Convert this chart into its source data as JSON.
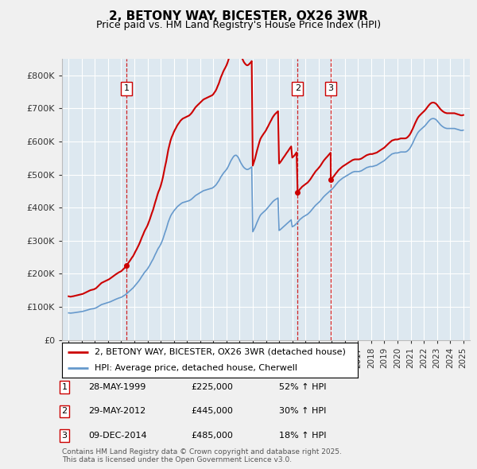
{
  "title": "2, BETONY WAY, BICESTER, OX26 3WR",
  "subtitle": "Price paid vs. HM Land Registry's House Price Index (HPI)",
  "legend_entries": [
    "2, BETONY WAY, BICESTER, OX26 3WR (detached house)",
    "HPI: Average price, detached house, Cherwell"
  ],
  "sales": [
    {
      "label": "1",
      "date_num": 1999.41,
      "price": 225000,
      "pct": "52% ↑ HPI"
    },
    {
      "label": "2",
      "date_num": 2012.41,
      "price": 445000,
      "pct": "30% ↑ HPI"
    },
    {
      "label": "3",
      "date_num": 2014.93,
      "price": 485000,
      "pct": "18% ↑ HPI"
    }
  ],
  "sale_annotations": [
    {
      "label": "1",
      "date": "28-MAY-1999",
      "price_str": "£225,000"
    },
    {
      "label": "2",
      "date": "29-MAY-2012",
      "price_str": "£445,000"
    },
    {
      "label": "3",
      "date": "09-DEC-2014",
      "price_str": "£485,000"
    }
  ],
  "red_line_color": "#cc0000",
  "blue_line_color": "#6699cc",
  "vline_color": "#cc0000",
  "plot_bg_color": "#dde8f0",
  "fig_bg_color": "#f0f0f0",
  "ylim": [
    0,
    850000
  ],
  "xlim": [
    1994.5,
    2025.5
  ],
  "yticks": [
    0,
    100000,
    200000,
    300000,
    400000,
    500000,
    600000,
    700000,
    800000
  ],
  "ytick_labels": [
    "£0",
    "£100K",
    "£200K",
    "£300K",
    "£400K",
    "£500K",
    "£600K",
    "£700K",
    "£800K"
  ],
  "footer": "Contains HM Land Registry data © Crown copyright and database right 2025.\nThis data is licensed under the Open Government Licence v3.0.",
  "hpi_years": [
    1995,
    1995.08,
    1995.17,
    1995.25,
    1995.33,
    1995.42,
    1995.5,
    1995.58,
    1995.67,
    1995.75,
    1995.83,
    1995.92,
    1996,
    1996.08,
    1996.17,
    1996.25,
    1996.33,
    1996.42,
    1996.5,
    1996.58,
    1996.67,
    1996.75,
    1996.83,
    1996.92,
    1997,
    1997.08,
    1997.17,
    1997.25,
    1997.33,
    1997.42,
    1997.5,
    1997.58,
    1997.67,
    1997.75,
    1997.83,
    1997.92,
    1998,
    1998.08,
    1998.17,
    1998.25,
    1998.33,
    1998.42,
    1998.5,
    1998.58,
    1998.67,
    1998.75,
    1998.83,
    1998.92,
    1999,
    1999.08,
    1999.17,
    1999.25,
    1999.33,
    1999.42,
    1999.5,
    1999.58,
    1999.67,
    1999.75,
    1999.83,
    1999.92,
    2000,
    2000.08,
    2000.17,
    2000.25,
    2000.33,
    2000.42,
    2000.5,
    2000.58,
    2000.67,
    2000.75,
    2000.83,
    2000.92,
    2001,
    2001.08,
    2001.17,
    2001.25,
    2001.33,
    2001.42,
    2001.5,
    2001.58,
    2001.67,
    2001.75,
    2001.83,
    2001.92,
    2002,
    2002.08,
    2002.17,
    2002.25,
    2002.33,
    2002.42,
    2002.5,
    2002.58,
    2002.67,
    2002.75,
    2002.83,
    2002.92,
    2003,
    2003.08,
    2003.17,
    2003.25,
    2003.33,
    2003.42,
    2003.5,
    2003.58,
    2003.67,
    2003.75,
    2003.83,
    2003.92,
    2004,
    2004.08,
    2004.17,
    2004.25,
    2004.33,
    2004.42,
    2004.5,
    2004.58,
    2004.67,
    2004.75,
    2004.83,
    2004.92,
    2005,
    2005.08,
    2005.17,
    2005.25,
    2005.33,
    2005.42,
    2005.5,
    2005.58,
    2005.67,
    2005.75,
    2005.83,
    2005.92,
    2006,
    2006.08,
    2006.17,
    2006.25,
    2006.33,
    2006.42,
    2006.5,
    2006.58,
    2006.67,
    2006.75,
    2006.83,
    2006.92,
    2007,
    2007.08,
    2007.17,
    2007.25,
    2007.33,
    2007.42,
    2007.5,
    2007.58,
    2007.67,
    2007.75,
    2007.83,
    2007.92,
    2008,
    2008.08,
    2008.17,
    2008.25,
    2008.33,
    2008.42,
    2008.5,
    2008.58,
    2008.67,
    2008.75,
    2008.83,
    2008.92,
    2009,
    2009.08,
    2009.17,
    2009.25,
    2009.33,
    2009.42,
    2009.5,
    2009.58,
    2009.67,
    2009.75,
    2009.83,
    2009.92,
    2010,
    2010.08,
    2010.17,
    2010.25,
    2010.33,
    2010.42,
    2010.5,
    2010.58,
    2010.67,
    2010.75,
    2010.83,
    2010.92,
    2011,
    2011.08,
    2011.17,
    2011.25,
    2011.33,
    2011.42,
    2011.5,
    2011.58,
    2011.67,
    2011.75,
    2011.83,
    2011.92,
    2012,
    2012.08,
    2012.17,
    2012.25,
    2012.33,
    2012.42,
    2012.5,
    2012.58,
    2012.67,
    2012.75,
    2012.83,
    2012.92,
    2013,
    2013.08,
    2013.17,
    2013.25,
    2013.33,
    2013.42,
    2013.5,
    2013.58,
    2013.67,
    2013.75,
    2013.83,
    2013.92,
    2014,
    2014.08,
    2014.17,
    2014.25,
    2014.33,
    2014.42,
    2014.5,
    2014.58,
    2014.67,
    2014.75,
    2014.83,
    2014.92,
    2015,
    2015.08,
    2015.17,
    2015.25,
    2015.33,
    2015.42,
    2015.5,
    2015.58,
    2015.67,
    2015.75,
    2015.83,
    2015.92,
    2016,
    2016.08,
    2016.17,
    2016.25,
    2016.33,
    2016.42,
    2016.5,
    2016.58,
    2016.67,
    2016.75,
    2016.83,
    2016.92,
    2017,
    2017.08,
    2017.17,
    2017.25,
    2017.33,
    2017.42,
    2017.5,
    2017.58,
    2017.67,
    2017.75,
    2017.83,
    2017.92,
    2018,
    2018.08,
    2018.17,
    2018.25,
    2018.33,
    2018.42,
    2018.5,
    2018.58,
    2018.67,
    2018.75,
    2018.83,
    2018.92,
    2019,
    2019.08,
    2019.17,
    2019.25,
    2019.33,
    2019.42,
    2019.5,
    2019.58,
    2019.67,
    2019.75,
    2019.83,
    2019.92,
    2020,
    2020.08,
    2020.17,
    2020.25,
    2020.33,
    2020.42,
    2020.5,
    2020.58,
    2020.67,
    2020.75,
    2020.83,
    2020.92,
    2021,
    2021.08,
    2021.17,
    2021.25,
    2021.33,
    2021.42,
    2021.5,
    2021.58,
    2021.67,
    2021.75,
    2021.83,
    2021.92,
    2022,
    2022.08,
    2022.17,
    2022.25,
    2022.33,
    2022.42,
    2022.5,
    2022.58,
    2022.67,
    2022.75,
    2022.83,
    2022.92,
    2023,
    2023.08,
    2023.17,
    2023.25,
    2023.33,
    2023.42,
    2023.5,
    2023.58,
    2023.67,
    2023.75,
    2023.83,
    2023.92,
    2024,
    2024.08,
    2024.17,
    2024.25,
    2024.33,
    2024.42,
    2024.5,
    2024.58,
    2024.67,
    2024.75,
    2024.83,
    2024.92,
    2025.0
  ],
  "hpi_values": [
    82000,
    81500,
    81200,
    81800,
    82000,
    82500,
    83000,
    83500,
    84000,
    84500,
    85000,
    85500,
    86000,
    86500,
    87500,
    88500,
    89500,
    90500,
    91500,
    92500,
    93500,
    94000,
    94500,
    95000,
    96000,
    97000,
    99000,
    101000,
    103000,
    105000,
    107000,
    108000,
    109000,
    110000,
    111000,
    112000,
    113000,
    114000,
    115500,
    117000,
    118500,
    120000,
    121500,
    123000,
    124500,
    126000,
    127000,
    128000,
    129000,
    131000,
    133000,
    135000,
    137000,
    140000,
    143000,
    146000,
    149000,
    152000,
    155000,
    158000,
    162000,
    166000,
    170000,
    174000,
    178000,
    183000,
    188000,
    193000,
    198000,
    203000,
    207000,
    211000,
    215000,
    220000,
    226000,
    232000,
    238000,
    244000,
    251000,
    258000,
    265000,
    272000,
    278000,
    283000,
    289000,
    296000,
    305000,
    315000,
    325000,
    335000,
    346000,
    357000,
    366000,
    374000,
    380000,
    385000,
    390000,
    394000,
    398000,
    402000,
    405000,
    408000,
    411000,
    413000,
    415000,
    416000,
    417000,
    418000,
    419000,
    420000,
    421000,
    423000,
    425000,
    428000,
    431000,
    434000,
    437000,
    439000,
    441000,
    443000,
    445000,
    447000,
    449000,
    451000,
    452000,
    453000,
    454000,
    455000,
    456000,
    457000,
    458000,
    459000,
    461000,
    464000,
    467000,
    471000,
    476000,
    481000,
    487000,
    493000,
    498000,
    503000,
    507000,
    511000,
    515000,
    520000,
    527000,
    534000,
    541000,
    547000,
    552000,
    556000,
    558000,
    558000,
    555000,
    550000,
    543000,
    536000,
    530000,
    525000,
    521000,
    518000,
    516000,
    515000,
    516000,
    518000,
    520000,
    523000,
    327000,
    333000,
    340000,
    348000,
    356000,
    364000,
    371000,
    377000,
    381000,
    384000,
    387000,
    390000,
    393000,
    397000,
    401000,
    405000,
    409000,
    413000,
    417000,
    420000,
    423000,
    425000,
    427000,
    429000,
    331000,
    333000,
    336000,
    339000,
    342000,
    345000,
    348000,
    351000,
    354000,
    357000,
    360000,
    363000,
    342000,
    344000,
    346000,
    349000,
    352000,
    356000,
    360000,
    364000,
    367000,
    370000,
    372000,
    374000,
    376000,
    378000,
    380000,
    383000,
    386000,
    390000,
    394000,
    398000,
    402000,
    406000,
    409000,
    412000,
    415000,
    418000,
    422000,
    426000,
    430000,
    434000,
    437000,
    440000,
    443000,
    446000,
    449000,
    452000,
    455000,
    458000,
    462000,
    466000,
    470000,
    474000,
    478000,
    481000,
    484000,
    487000,
    489000,
    491000,
    493000,
    495000,
    497000,
    499000,
    501000,
    503000,
    505000,
    507000,
    508000,
    509000,
    509000,
    509000,
    509000,
    509000,
    510000,
    511000,
    513000,
    515000,
    517000,
    519000,
    521000,
    522000,
    523000,
    524000,
    524000,
    524000,
    525000,
    526000,
    527000,
    528000,
    530000,
    532000,
    534000,
    536000,
    538000,
    540000,
    542000,
    545000,
    548000,
    551000,
    554000,
    557000,
    560000,
    562000,
    563000,
    564000,
    565000,
    565000,
    565000,
    566000,
    567000,
    568000,
    568000,
    568000,
    568000,
    568000,
    569000,
    571000,
    574000,
    578000,
    583000,
    589000,
    596000,
    603000,
    610000,
    617000,
    623000,
    628000,
    632000,
    635000,
    638000,
    641000,
    644000,
    647000,
    651000,
    655000,
    659000,
    663000,
    666000,
    668000,
    669000,
    669000,
    668000,
    666000,
    663000,
    659000,
    655000,
    651000,
    648000,
    645000,
    643000,
    641000,
    640000,
    639000,
    639000,
    639000,
    639000,
    639000,
    639000,
    639000,
    639000,
    638000,
    637000,
    636000,
    635000,
    634000,
    633000,
    633000,
    634000,
    636000,
    639000,
    642000,
    646000,
    650000,
    654000,
    657000,
    660000,
    663000,
    665000,
    667000,
    669000
  ]
}
